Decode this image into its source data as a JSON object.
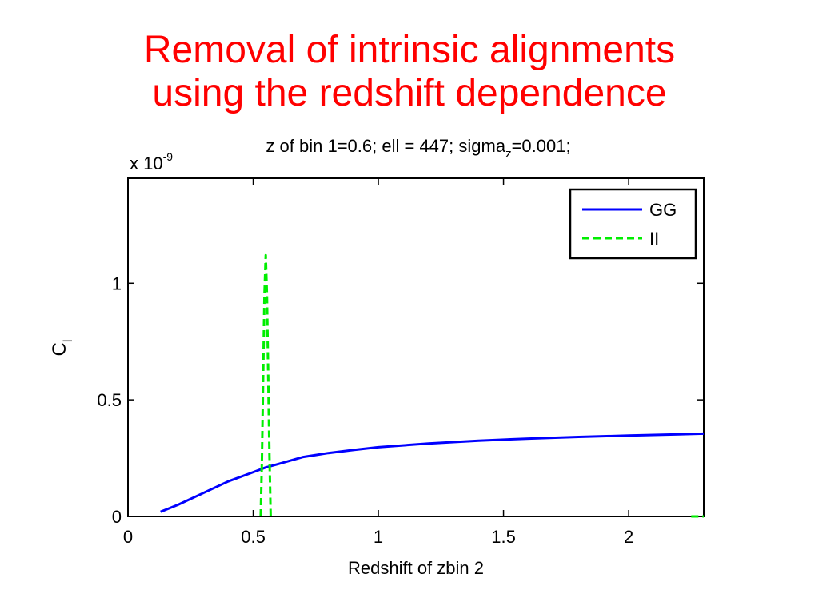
{
  "slide": {
    "title_line1": "Removal of intrinsic alignments",
    "title_line2": "using the redshift dependence",
    "title_color": "#ff0000"
  },
  "chart_data": {
    "type": "line",
    "title_prefix": "z of bin 1=0.6; ell = 447; sigma",
    "title_sub": "z",
    "title_suffix": "=0.001;",
    "xlabel": "Redshift of zbin 2",
    "ylabel_main": "C",
    "ylabel_sub": "l",
    "y_multiplier_base": "x 10",
    "y_multiplier_exp": "-9",
    "xlim": [
      0,
      2.3
    ],
    "ylim": [
      0,
      1.45
    ],
    "xticks": [
      0,
      0.5,
      1,
      1.5,
      2
    ],
    "xtick_labels": [
      "0",
      "0.5",
      "1",
      "1.5",
      "2"
    ],
    "yticks": [
      0,
      0.5,
      1
    ],
    "ytick_labels": [
      "0",
      "0.5",
      "1"
    ],
    "grid": false,
    "legend_position": "top-right",
    "series": [
      {
        "name": "GG",
        "color": "#0000ff",
        "style": "solid",
        "x": [
          0.13,
          0.2,
          0.3,
          0.4,
          0.5,
          0.55,
          0.6,
          0.7,
          0.8,
          0.9,
          1.0,
          1.2,
          1.4,
          1.6,
          1.8,
          2.0,
          2.2,
          2.3
        ],
        "y": [
          0.02,
          0.05,
          0.1,
          0.15,
          0.19,
          0.21,
          0.225,
          0.255,
          0.272,
          0.285,
          0.297,
          0.313,
          0.325,
          0.334,
          0.341,
          0.347,
          0.352,
          0.355
        ]
      },
      {
        "name": "II",
        "color": "#00ee00",
        "style": "dashed",
        "x": [
          0.53,
          0.535,
          0.54,
          0.545,
          0.55,
          0.555,
          0.56,
          0.565,
          0.57,
          2.25,
          2.3
        ],
        "y": [
          0.0,
          0.25,
          0.6,
          0.95,
          1.12,
          0.95,
          0.6,
          0.25,
          0.0,
          0.0,
          0.0
        ]
      }
    ]
  }
}
